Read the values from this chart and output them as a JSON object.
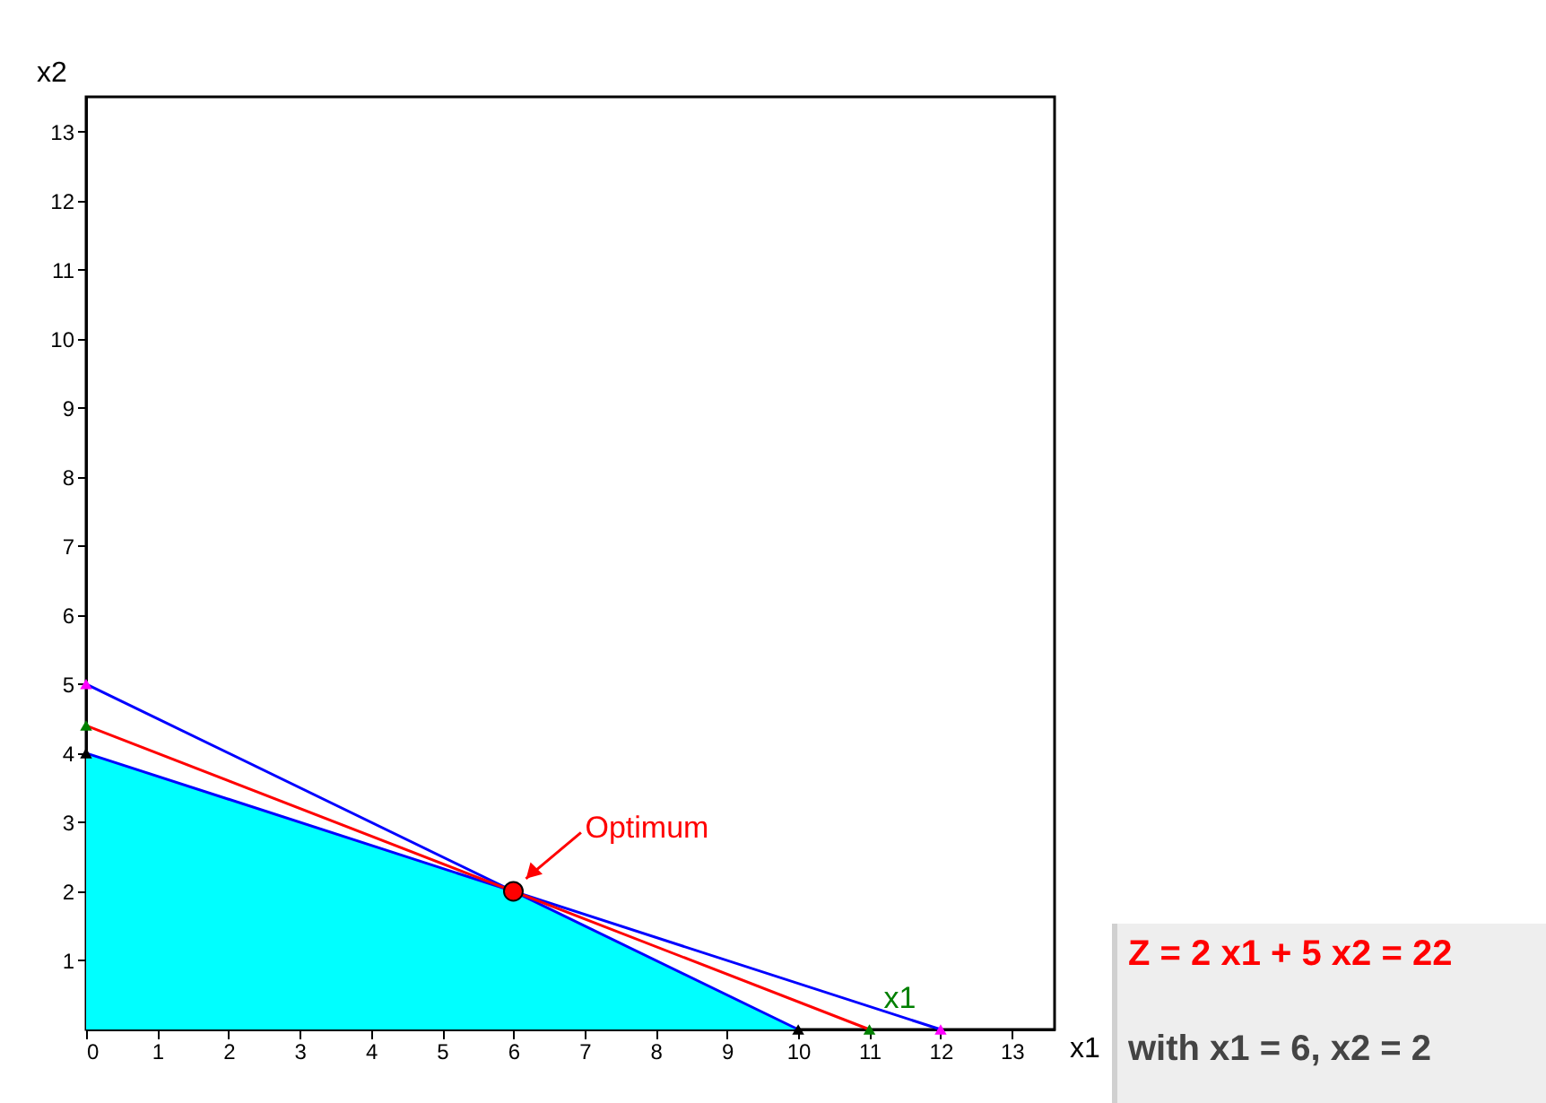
{
  "chart_data": {
    "type": "line",
    "xlabel": "x1",
    "ylabel": "x2",
    "xlim": [
      0,
      13.6
    ],
    "ylim": [
      0,
      13.5
    ],
    "xticks": [
      0,
      1,
      2,
      3,
      4,
      5,
      6,
      7,
      8,
      9,
      10,
      11,
      12,
      13
    ],
    "yticks": [
      1,
      2,
      3,
      4,
      5,
      6,
      7,
      8,
      9,
      10,
      11,
      12,
      13
    ],
    "series": [
      {
        "type": "area",
        "color": "#00ffff",
        "x": [
          0,
          6,
          10
        ],
        "values": [
          4,
          2,
          0
        ]
      },
      {
        "color": "#0000ff",
        "x": [
          0,
          12
        ],
        "values": [
          4,
          0
        ]
      },
      {
        "color": "#0000ff",
        "x": [
          0,
          10
        ],
        "values": [
          5,
          0
        ]
      },
      {
        "color": "#ff0000",
        "x": [
          0,
          11
        ],
        "values": [
          4.4,
          0
        ]
      },
      {
        "type": "scatter",
        "marker": "triangle",
        "color": "#ff00ff",
        "x": [
          0,
          12
        ],
        "values": [
          5,
          0
        ]
      },
      {
        "type": "scatter",
        "marker": "triangle",
        "color": "#008000",
        "x": [
          0,
          11
        ],
        "values": [
          4.4,
          0
        ]
      },
      {
        "type": "scatter",
        "marker": "triangle",
        "color": "#000000",
        "x": [
          0,
          10
        ],
        "values": [
          4,
          0
        ]
      },
      {
        "type": "scatter",
        "marker": "circle",
        "color": "#ff0000",
        "x": [
          6
        ],
        "values": [
          2
        ]
      }
    ],
    "annotations": [
      {
        "text": "Optimum",
        "x": 6,
        "y": 2
      },
      {
        "text": "x1",
        "x": 11,
        "y": 0
      },
      "Z = 2 x1 + 5 x2 = 22",
      "with x1 = 6, x2 = 2"
    ]
  }
}
